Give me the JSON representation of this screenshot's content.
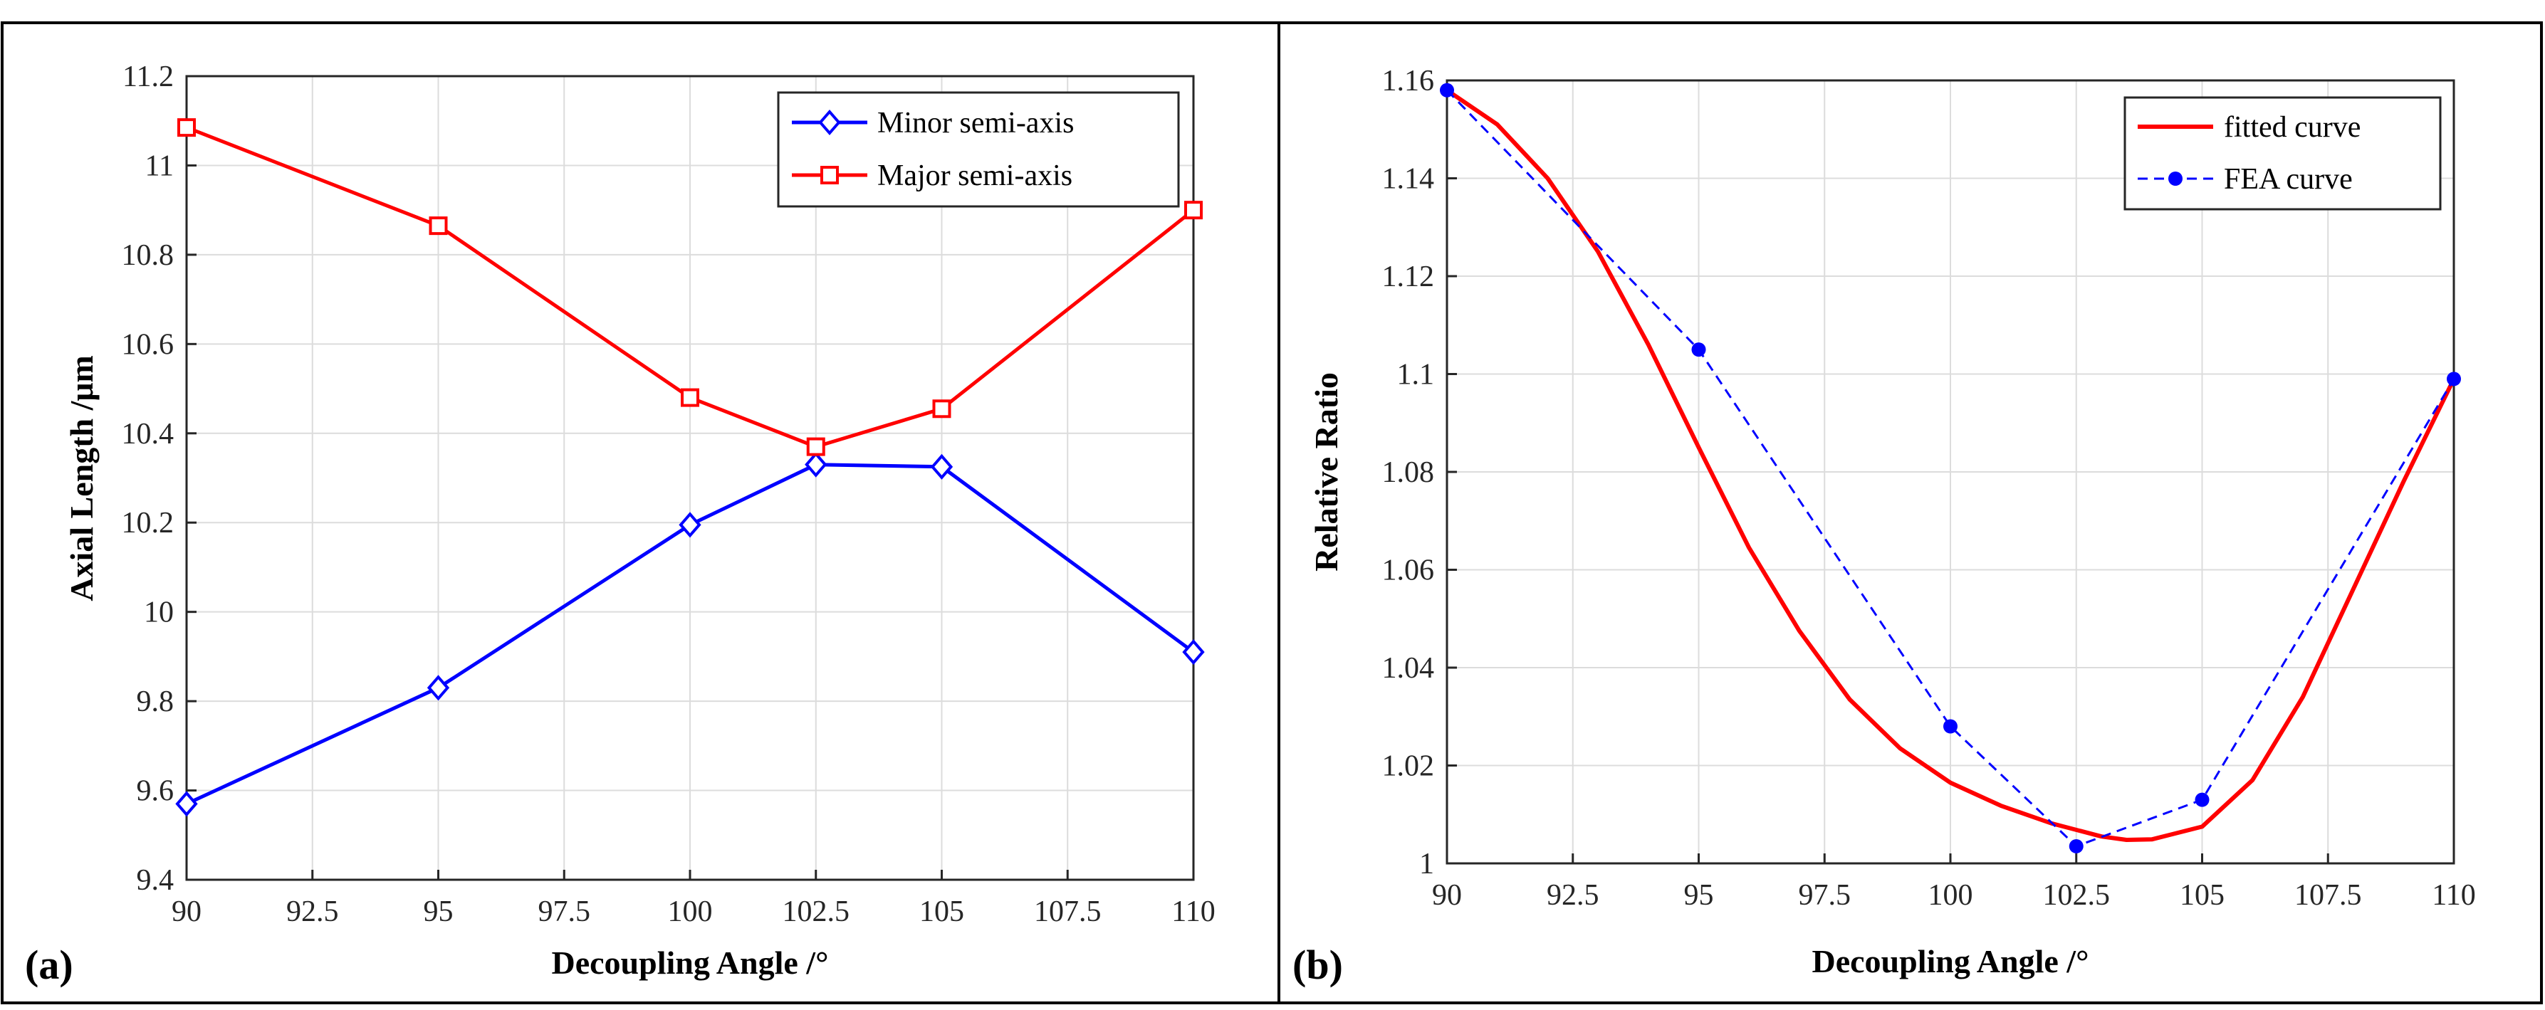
{
  "chart_data": [
    {
      "type": "line",
      "panel_label": "(a)",
      "xlabel": "Decoupling Angle /°",
      "ylabel": "Axial Length /μm",
      "xlim": [
        90,
        110
      ],
      "ylim": [
        9.4,
        11.2
      ],
      "xticks": [
        90,
        92.5,
        95,
        97.5,
        100,
        102.5,
        105,
        107.5,
        110
      ],
      "xtick_labels": [
        "90",
        "92.5",
        "95",
        "97.5",
        "100",
        "102.5",
        "105",
        "107.5",
        "110"
      ],
      "yticks": [
        9.4,
        9.6,
        9.8,
        10.0,
        10.2,
        10.4,
        10.6,
        10.8,
        11.0,
        11.2
      ],
      "ytick_labels": [
        "9.4",
        "9.6",
        "9.8",
        "10",
        "10.2",
        "10.4",
        "10.6",
        "10.8",
        "11",
        "11.2"
      ],
      "grid": true,
      "legend_position": "top-right",
      "x": [
        90,
        95,
        100,
        102.5,
        105,
        110
      ],
      "series": [
        {
          "name": "Minor semi-axis",
          "color": "#0000ff",
          "marker": "diamond",
          "line": "solid",
          "x": [
            90,
            95,
            100,
            102.5,
            105,
            110
          ],
          "values": [
            9.57,
            9.83,
            10.195,
            10.33,
            10.325,
            9.91
          ]
        },
        {
          "name": "Major semi-axis",
          "color": "#ff0000",
          "marker": "square",
          "line": "solid",
          "x": [
            90,
            95,
            100,
            102.5,
            105,
            110
          ],
          "values": [
            11.085,
            10.865,
            10.48,
            10.37,
            10.455,
            10.9
          ]
        }
      ]
    },
    {
      "type": "line",
      "panel_label": "(b)",
      "xlabel": "Decoupling Angle /°",
      "ylabel": "Relative Ratio",
      "xlim": [
        90,
        110
      ],
      "ylim": [
        1.0,
        1.16
      ],
      "xticks": [
        90,
        92.5,
        95,
        97.5,
        100,
        102.5,
        105,
        107.5,
        110
      ],
      "xtick_labels": [
        "90",
        "92.5",
        "95",
        "97.5",
        "100",
        "102.5",
        "105",
        "107.5",
        "110"
      ],
      "yticks": [
        1.0,
        1.02,
        1.04,
        1.06,
        1.08,
        1.1,
        1.12,
        1.14,
        1.16
      ],
      "ytick_labels": [
        "1",
        "1.02",
        "1.04",
        "1.06",
        "1.08",
        "1.1",
        "1.12",
        "1.14",
        "1.16"
      ],
      "grid": true,
      "legend_position": "top-right",
      "series": [
        {
          "name": "fitted curve",
          "color": "#ff0000",
          "marker": "none",
          "line": "solid",
          "x": [
            90,
            91,
            92,
            93,
            94,
            95,
            96,
            97,
            98,
            99,
            100,
            101,
            102,
            103,
            103.5,
            104,
            105,
            106,
            107,
            108,
            109,
            110
          ],
          "values": [
            1.158,
            1.151,
            1.14,
            1.125,
            1.106,
            1.085,
            1.0645,
            1.0475,
            1.0335,
            1.0235,
            1.0165,
            1.0118,
            1.0082,
            1.0055,
            1.0048,
            1.0049,
            1.0075,
            1.017,
            1.034,
            1.056,
            1.078,
            1.099
          ]
        },
        {
          "name": "FEA curve",
          "color": "#0000ff",
          "marker": "circle",
          "line": "dashed",
          "x": [
            90,
            95,
            100,
            102.5,
            105,
            110
          ],
          "values": [
            1.158,
            1.105,
            1.028,
            1.0035,
            1.013,
            1.099
          ]
        }
      ]
    }
  ]
}
